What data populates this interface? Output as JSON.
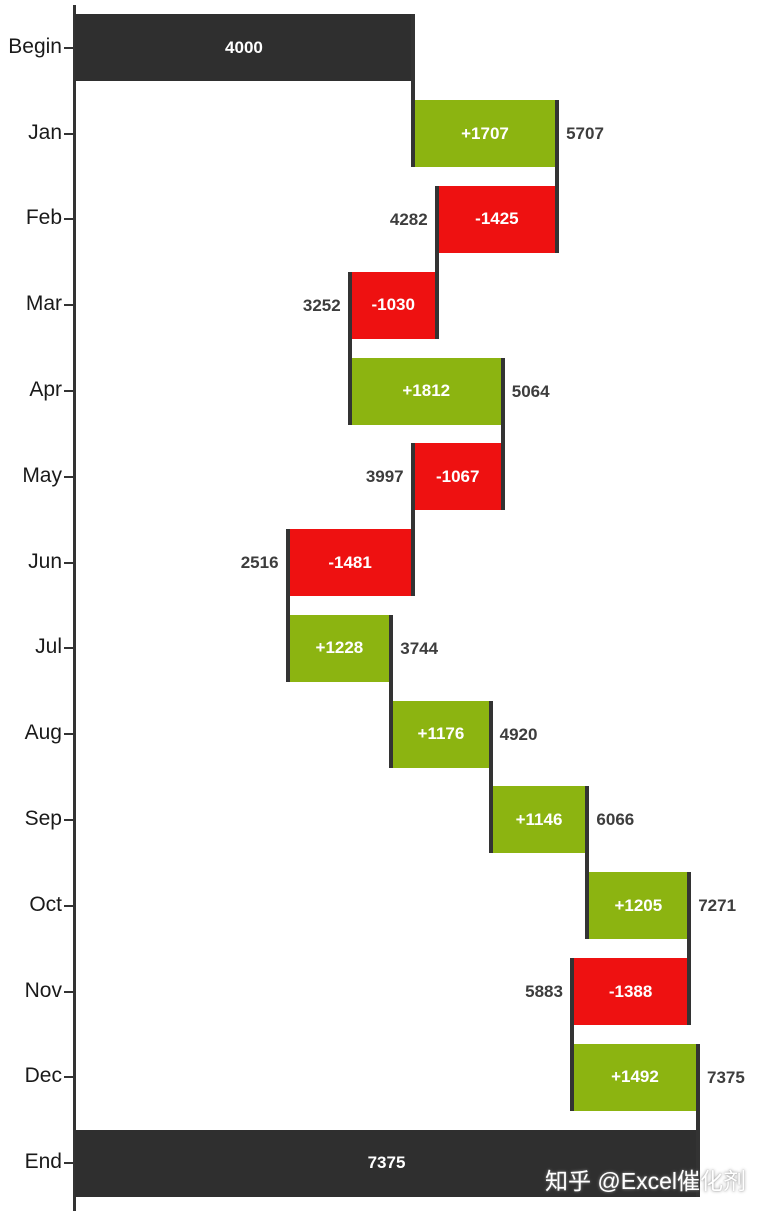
{
  "chart_data": {
    "type": "bar",
    "subtype": "waterfall",
    "orientation": "horizontal",
    "title": "",
    "xlabel": "",
    "ylabel": "",
    "legend": "none",
    "grid": "off",
    "value_range": [
      0,
      7375
    ],
    "categories": [
      "Begin",
      "Jan",
      "Feb",
      "Mar",
      "Apr",
      "May",
      "Jun",
      "Jul",
      "Aug",
      "Sep",
      "Oct",
      "Nov",
      "Dec",
      "End"
    ],
    "steps": [
      {
        "category": "Begin",
        "kind": "total",
        "value": 4000,
        "running_total": 4000,
        "bar_label": "4000",
        "total_label": ""
      },
      {
        "category": "Jan",
        "kind": "increase",
        "value": 1707,
        "running_total": 5707,
        "bar_label": "+1707",
        "total_label": "5707"
      },
      {
        "category": "Feb",
        "kind": "decrease",
        "value": -1425,
        "running_total": 4282,
        "bar_label": "-1425",
        "total_label": "4282"
      },
      {
        "category": "Mar",
        "kind": "decrease",
        "value": -1030,
        "running_total": 3252,
        "bar_label": "-1030",
        "total_label": "3252"
      },
      {
        "category": "Apr",
        "kind": "increase",
        "value": 1812,
        "running_total": 5064,
        "bar_label": "+1812",
        "total_label": "5064"
      },
      {
        "category": "May",
        "kind": "decrease",
        "value": -1067,
        "running_total": 3997,
        "bar_label": "-1067",
        "total_label": "3997"
      },
      {
        "category": "Jun",
        "kind": "decrease",
        "value": -1481,
        "running_total": 2516,
        "bar_label": "-1481",
        "total_label": "2516"
      },
      {
        "category": "Jul",
        "kind": "increase",
        "value": 1228,
        "running_total": 3744,
        "bar_label": "+1228",
        "total_label": "3744"
      },
      {
        "category": "Aug",
        "kind": "increase",
        "value": 1176,
        "running_total": 4920,
        "bar_label": "+1176",
        "total_label": "4920"
      },
      {
        "category": "Sep",
        "kind": "increase",
        "value": 1146,
        "running_total": 6066,
        "bar_label": "+1146",
        "total_label": "6066"
      },
      {
        "category": "Oct",
        "kind": "increase",
        "value": 1205,
        "running_total": 7271,
        "bar_label": "+1205",
        "total_label": "7271"
      },
      {
        "category": "Nov",
        "kind": "decrease",
        "value": -1388,
        "running_total": 5883,
        "bar_label": "-1388",
        "total_label": "5883"
      },
      {
        "category": "Dec",
        "kind": "increase",
        "value": 1492,
        "running_total": 7375,
        "bar_label": "+1492",
        "total_label": "7375"
      },
      {
        "category": "End",
        "kind": "total",
        "value": 7375,
        "running_total": 7375,
        "bar_label": "7375",
        "total_label": ""
      }
    ],
    "colors": {
      "increase": "#8CB411",
      "decrease": "#EE1111",
      "total": "#2F2F2F",
      "connector": "#333333",
      "axis": "#333333",
      "inside_label": "#FFFFFF",
      "outside_label": "#3D3D3D",
      "category_label": "#1A1A1A"
    }
  },
  "watermark": {
    "text": "知乎 @Excel催化剂"
  }
}
